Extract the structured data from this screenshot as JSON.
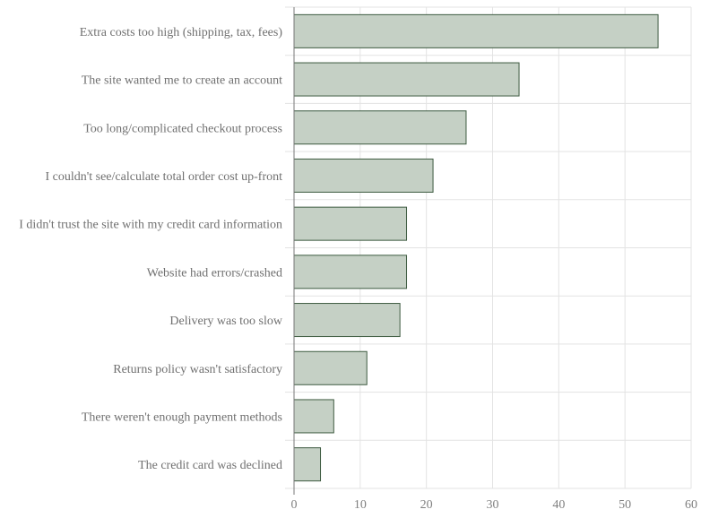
{
  "chart_data": {
    "type": "bar",
    "orientation": "horizontal",
    "categories": [
      "Extra costs too high (shipping, tax, fees)",
      "The site wanted me to create an account",
      "Too long/complicated checkout process",
      "I couldn't see/calculate total order cost up-front",
      "I didn't trust the site with my credit card information",
      "Website had errors/crashed",
      "Delivery was too slow",
      "Returns policy wasn't satisfactory",
      "There weren't enough payment methods",
      "The credit card was declined"
    ],
    "values": [
      55,
      34,
      26,
      21,
      17,
      17,
      16,
      11,
      6,
      4
    ],
    "xlim": [
      0,
      60
    ],
    "xticks": [
      0,
      10,
      20,
      30,
      40,
      50,
      60
    ],
    "title": "",
    "xlabel": "",
    "ylabel": "",
    "grid": true,
    "colors": {
      "bar_fill": "#c5d0c5",
      "bar_stroke": "#3d5a40",
      "grid": "#e3e3e3",
      "text": "#707070"
    }
  }
}
